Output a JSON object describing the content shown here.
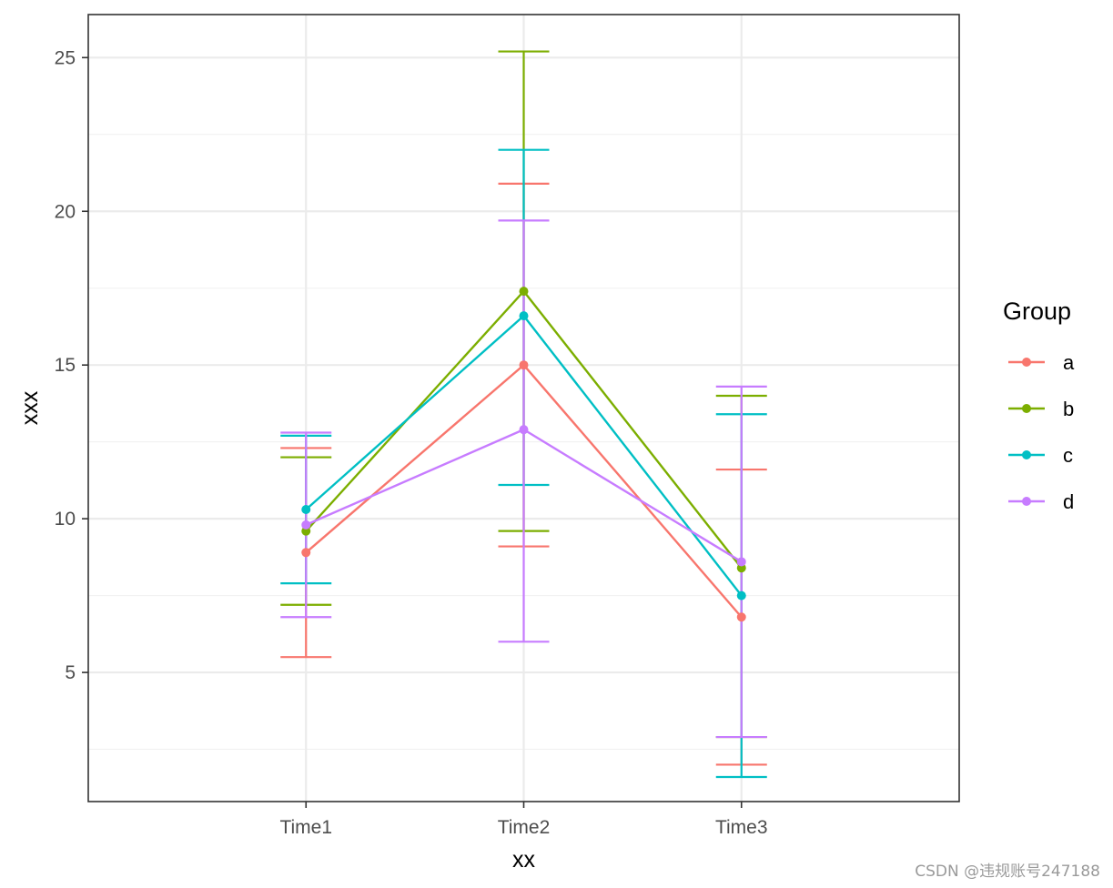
{
  "chart_data": {
    "type": "line",
    "xlabel": "xx",
    "ylabel": "xxx",
    "categories": [
      "Time1",
      "Time2",
      "Time3"
    ],
    "ylim": [
      0.8,
      26.4
    ],
    "yticks": [
      5,
      10,
      15,
      20,
      25
    ],
    "grid": true,
    "legend": {
      "title": "Group",
      "position": "right"
    },
    "series": [
      {
        "name": "a",
        "color": "#F8766D",
        "values": [
          8.9,
          15.0,
          6.8
        ],
        "lower": [
          5.5,
          9.1,
          2.0
        ],
        "upper": [
          12.3,
          20.9,
          11.6
        ]
      },
      {
        "name": "b",
        "color": "#7CAE00",
        "values": [
          9.6,
          17.4,
          8.4
        ],
        "lower": [
          7.2,
          9.6,
          2.9
        ],
        "upper": [
          12.0,
          25.2,
          14.0
        ]
      },
      {
        "name": "c",
        "color": "#00BFC4",
        "values": [
          10.3,
          16.6,
          7.5
        ],
        "lower": [
          7.9,
          11.1,
          1.6
        ],
        "upper": [
          12.7,
          22.0,
          13.4
        ]
      },
      {
        "name": "d",
        "color": "#C77CFF",
        "values": [
          9.8,
          12.9,
          8.6
        ],
        "lower": [
          6.8,
          6.0,
          2.9
        ],
        "upper": [
          12.8,
          19.7,
          14.3
        ]
      }
    ]
  },
  "watermark": "CSDN @违规账号247188"
}
